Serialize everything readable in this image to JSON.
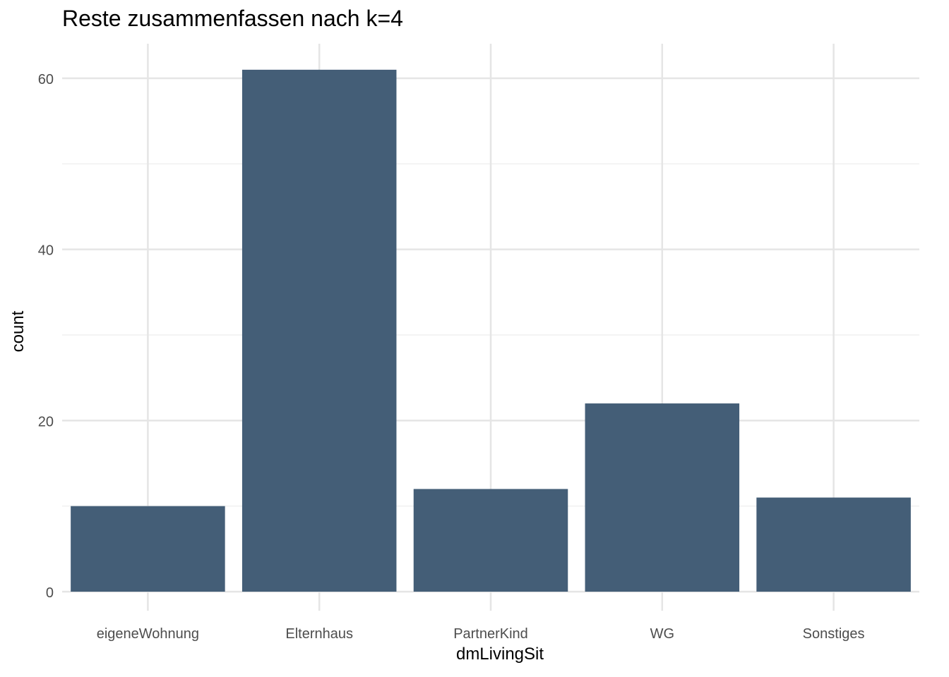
{
  "chart_data": {
    "type": "bar",
    "title": "Reste zusammenfassen nach k=4",
    "xlabel": "dmLivingSit",
    "ylabel": "count",
    "categories": [
      "eigeneWohnung",
      "Elternhaus",
      "PartnerKind",
      "WG",
      "Sonstiges"
    ],
    "values": [
      10,
      61,
      12,
      22,
      11
    ],
    "ylim": [
      0,
      64
    ],
    "yticks": [
      0,
      20,
      40,
      60
    ],
    "ytick_labels": [
      "0",
      "20",
      "40",
      "60"
    ],
    "grid": true,
    "legend": "none",
    "colors": {
      "bar": "#445e77",
      "grid_major": "#e5e5e5",
      "grid_minor": "#f0f0f0",
      "tick_text": "#4d4d4d",
      "text": "#000000"
    }
  }
}
